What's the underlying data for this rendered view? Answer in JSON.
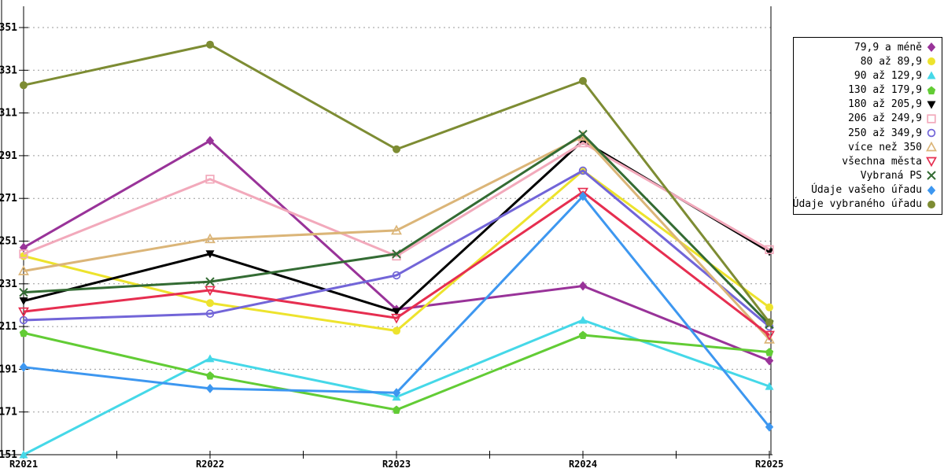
{
  "chart_data": {
    "type": "line",
    "title": "",
    "xlabel": "",
    "ylabel": "",
    "categories": [
      "R2021",
      "R2022",
      "R2023",
      "R2024",
      "R2025"
    ],
    "y_ticks": [
      151,
      171,
      191,
      211,
      231,
      251,
      271,
      291,
      311,
      331,
      351
    ],
    "ylim": [
      151,
      351
    ],
    "grid": "horizontal-dashed",
    "grid_color": "#9a9a9a",
    "axis_color": "#000000",
    "legend_position": "right",
    "series": [
      {
        "name": "79,9 a méně",
        "color": "#993399",
        "marker": "diamond",
        "values": [
          248,
          298,
          219,
          230,
          195
        ]
      },
      {
        "name": "80 až 89,9",
        "color": "#EDE32D",
        "marker": "circle",
        "values": [
          244,
          222,
          209,
          284,
          220
        ]
      },
      {
        "name": "90 až 129,9",
        "color": "#45D8E8",
        "marker": "triangle-up",
        "values": [
          151,
          196,
          178,
          214,
          183
        ]
      },
      {
        "name": "130 až 179,9",
        "color": "#62CC35",
        "marker": "pentagon",
        "values": [
          208,
          188,
          172,
          207,
          199
        ]
      },
      {
        "name": "180 až 205,9",
        "color": "#000000",
        "marker": "triangle-down",
        "values": [
          223,
          245,
          218,
          298,
          246
        ]
      },
      {
        "name": "206 až 249,9",
        "color": "#F2A9BB",
        "marker": "square-open",
        "values": [
          245,
          280,
          244,
          297,
          247
        ]
      },
      {
        "name": "250 až 349,9",
        "color": "#7265D8",
        "marker": "circle-open",
        "values": [
          214,
          217,
          235,
          284,
          211
        ]
      },
      {
        "name": "více než 350",
        "color": "#DBB578",
        "marker": "triangle-up-open",
        "values": [
          237,
          252,
          256,
          300,
          205
        ]
      },
      {
        "name": "všechna města",
        "color": "#E62E50",
        "marker": "triangle-down-open",
        "values": [
          218,
          228,
          215,
          274,
          207
        ]
      },
      {
        "name": "Vybraná PS",
        "color": "#336B33",
        "marker": "x-cross",
        "values": [
          227,
          232,
          245,
          301,
          212
        ]
      },
      {
        "name": "Údaje vašeho úřadu",
        "color": "#3D97F0",
        "marker": "diamond",
        "values": [
          192,
          182,
          180,
          272,
          164
        ]
      },
      {
        "name": "Údaje vybraného úřadu",
        "color": "#7D8C33",
        "marker": "circle",
        "values": [
          324,
          343,
          294,
          326,
          213
        ]
      }
    ]
  }
}
